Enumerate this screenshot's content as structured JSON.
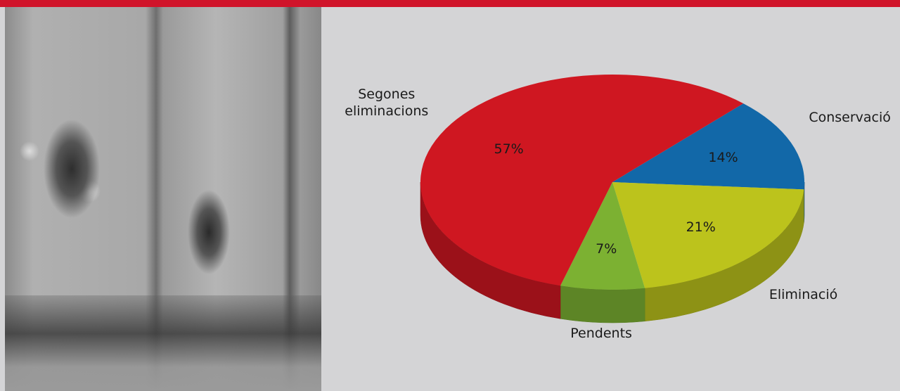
{
  "chart_data": {
    "type": "pie",
    "categories": [
      "Conservació",
      "Eliminació",
      "Pendents",
      "Segones\neliminacions"
    ],
    "values": [
      14,
      21,
      7,
      57
    ],
    "value_labels": [
      "14%",
      "21%",
      "7%",
      "57%"
    ],
    "colors": [
      "#1268a8",
      "#bcc31c",
      "#7cb132",
      "#cf1721"
    ]
  }
}
